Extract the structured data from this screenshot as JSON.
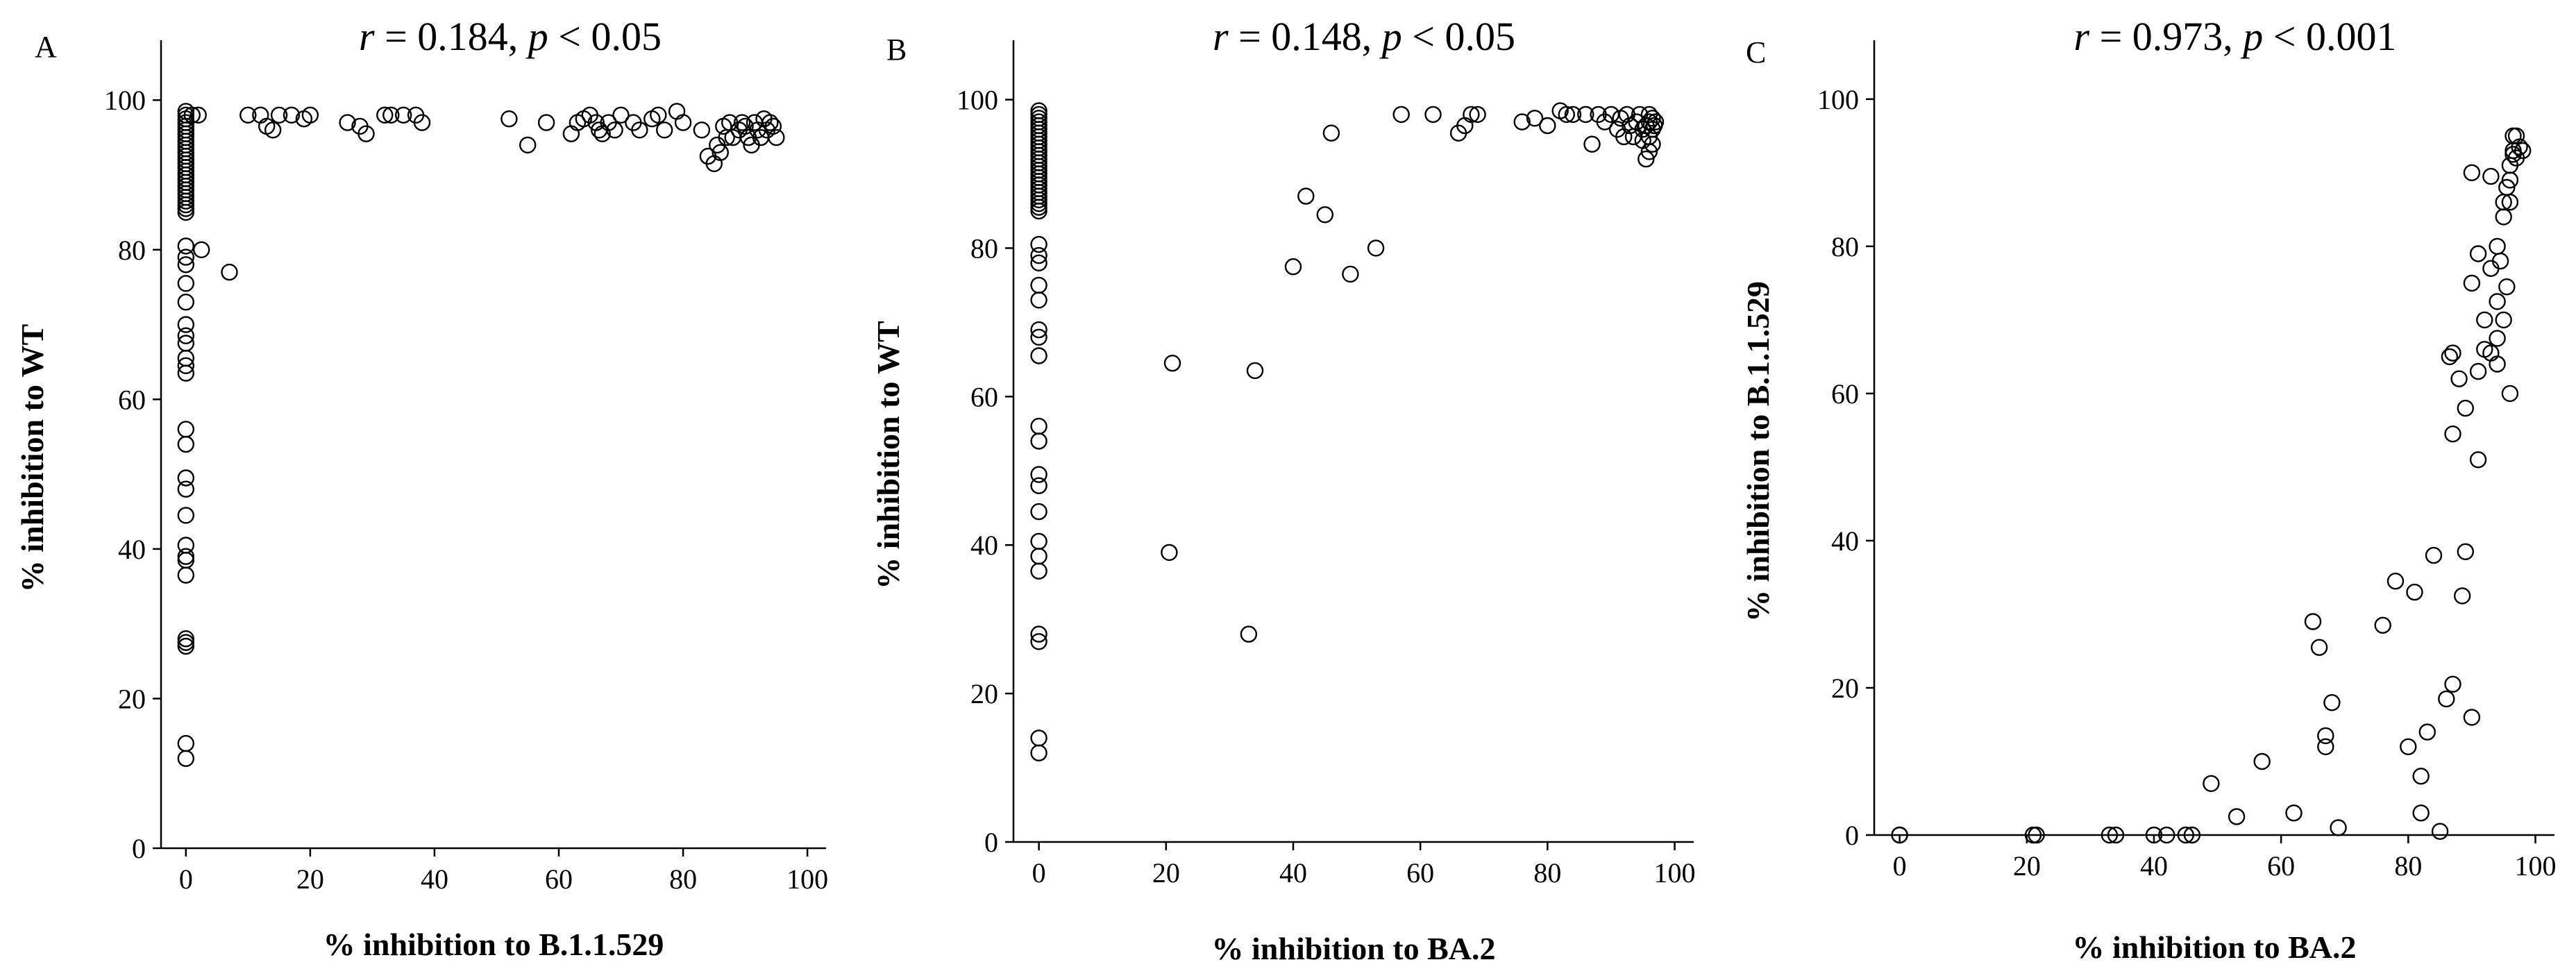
{
  "chart_data": [
    {
      "type": "scatter",
      "panel_label": "A",
      "title_r_sym": "r",
      "title_r_val": " = 0.184, ",
      "title_p_sym": "p",
      "title_p_val": " < 0.05",
      "xlabel": "% inhibition to B.1.1.529",
      "ylabel": "% inhibition to WT",
      "xlim": [
        -4,
        103
      ],
      "ylim": [
        0,
        108
      ],
      "xticks": [
        0,
        20,
        40,
        60,
        80,
        100
      ],
      "yticks": [
        0,
        20,
        40,
        60,
        80,
        100
      ],
      "points": [
        [
          0,
          98.5
        ],
        [
          0,
          98
        ],
        [
          0,
          97.5
        ],
        [
          0,
          97
        ],
        [
          0,
          96.5
        ],
        [
          0,
          96
        ],
        [
          0,
          95.5
        ],
        [
          0,
          95
        ],
        [
          0,
          94.5
        ],
        [
          0,
          94
        ],
        [
          0,
          93.5
        ],
        [
          0,
          93
        ],
        [
          0,
          92.5
        ],
        [
          0,
          92
        ],
        [
          0,
          91.5
        ],
        [
          0,
          91
        ],
        [
          0,
          90.5
        ],
        [
          0,
          90
        ],
        [
          0,
          89.5
        ],
        [
          0,
          89
        ],
        [
          0,
          88.5
        ],
        [
          0,
          88
        ],
        [
          0,
          87.5
        ],
        [
          0,
          87
        ],
        [
          0,
          86.5
        ],
        [
          0,
          86
        ],
        [
          0,
          85.5
        ],
        [
          0,
          85
        ],
        [
          0,
          80.5
        ],
        [
          0,
          79
        ],
        [
          0,
          78
        ],
        [
          0,
          75.5
        ],
        [
          0,
          73
        ],
        [
          0,
          70
        ],
        [
          0,
          68.5
        ],
        [
          0,
          67.5
        ],
        [
          0,
          65.5
        ],
        [
          0,
          64.5
        ],
        [
          0,
          63.5
        ],
        [
          0,
          56
        ],
        [
          0,
          54
        ],
        [
          0,
          49.5
        ],
        [
          0,
          48
        ],
        [
          0,
          44.5
        ],
        [
          0,
          40.5
        ],
        [
          0,
          39
        ],
        [
          0,
          38.5
        ],
        [
          0,
          36.5
        ],
        [
          0,
          28
        ],
        [
          0,
          27.5
        ],
        [
          0,
          27
        ],
        [
          0,
          14
        ],
        [
          0,
          12
        ],
        [
          1,
          98
        ],
        [
          2,
          98
        ],
        [
          2.5,
          80
        ],
        [
          7,
          77
        ],
        [
          10,
          98
        ],
        [
          12,
          98
        ],
        [
          13,
          96.5
        ],
        [
          14,
          96
        ],
        [
          15,
          98
        ],
        [
          17,
          98
        ],
        [
          19,
          97.5
        ],
        [
          20,
          98
        ],
        [
          26,
          97
        ],
        [
          28,
          96.5
        ],
        [
          29,
          95.5
        ],
        [
          32,
          98
        ],
        [
          33,
          98
        ],
        [
          35,
          98
        ],
        [
          37,
          98
        ],
        [
          38,
          97
        ],
        [
          52,
          97.5
        ],
        [
          55,
          94
        ],
        [
          58,
          97
        ],
        [
          62,
          95.5
        ],
        [
          63,
          97
        ],
        [
          64,
          97.5
        ],
        [
          65,
          98
        ],
        [
          66,
          97
        ],
        [
          66.5,
          96
        ],
        [
          67,
          95.5
        ],
        [
          68,
          97
        ],
        [
          69,
          96
        ],
        [
          70,
          98
        ],
        [
          72,
          97
        ],
        [
          73,
          96
        ],
        [
          75,
          97.5
        ],
        [
          76,
          98
        ],
        [
          77,
          96
        ],
        [
          79,
          98.5
        ],
        [
          80,
          97
        ],
        [
          83,
          96
        ],
        [
          84,
          92.5
        ],
        [
          85,
          91.5
        ],
        [
          85.5,
          94
        ],
        [
          86,
          93
        ],
        [
          86.5,
          96.5
        ],
        [
          87,
          95
        ],
        [
          87.5,
          97
        ],
        [
          88,
          95
        ],
        [
          89,
          96
        ],
        [
          89.5,
          97
        ],
        [
          90,
          96.5
        ],
        [
          90.5,
          95
        ],
        [
          91,
          94
        ],
        [
          91.5,
          97
        ],
        [
          92,
          96
        ],
        [
          92.5,
          95
        ],
        [
          93,
          97.5
        ],
        [
          93.5,
          96
        ],
        [
          94,
          97
        ],
        [
          94.5,
          96.5
        ],
        [
          95,
          95
        ]
      ]
    },
    {
      "type": "scatter",
      "panel_label": "B",
      "title_r_sym": "r",
      "title_r_val": " = 0.148, ",
      "title_p_sym": "p",
      "title_p_val": " < 0.05",
      "xlabel": "% inhibition to BA.2",
      "ylabel": "% inhibition to WT",
      "xlim": [
        -4,
        103
      ],
      "ylim": [
        0,
        108
      ],
      "xticks": [
        0,
        20,
        40,
        60,
        80,
        100
      ],
      "yticks": [
        0,
        20,
        40,
        60,
        80,
        100
      ],
      "points": [
        [
          0,
          98.5
        ],
        [
          0,
          98
        ],
        [
          0,
          97.5
        ],
        [
          0,
          97
        ],
        [
          0,
          96.5
        ],
        [
          0,
          96
        ],
        [
          0,
          95.5
        ],
        [
          0,
          95
        ],
        [
          0,
          94.5
        ],
        [
          0,
          94
        ],
        [
          0,
          93.5
        ],
        [
          0,
          93
        ],
        [
          0,
          92.5
        ],
        [
          0,
          92
        ],
        [
          0,
          91.5
        ],
        [
          0,
          91
        ],
        [
          0,
          90.5
        ],
        [
          0,
          90
        ],
        [
          0,
          89.5
        ],
        [
          0,
          89
        ],
        [
          0,
          88.5
        ],
        [
          0,
          88
        ],
        [
          0,
          87.5
        ],
        [
          0,
          87
        ],
        [
          0,
          86.5
        ],
        [
          0,
          86
        ],
        [
          0,
          85.5
        ],
        [
          0,
          85
        ],
        [
          0,
          80.5
        ],
        [
          0,
          79
        ],
        [
          0,
          78
        ],
        [
          0,
          75
        ],
        [
          0,
          73
        ],
        [
          0,
          69
        ],
        [
          0,
          68
        ],
        [
          0,
          65.5
        ],
        [
          0,
          56
        ],
        [
          0,
          54
        ],
        [
          0,
          49.5
        ],
        [
          0,
          48
        ],
        [
          0,
          44.5
        ],
        [
          0,
          40.5
        ],
        [
          0,
          38.5
        ],
        [
          0,
          36.5
        ],
        [
          0,
          28
        ],
        [
          0,
          27
        ],
        [
          0,
          14
        ],
        [
          0,
          12
        ],
        [
          20.5,
          39
        ],
        [
          21,
          64.5
        ],
        [
          33,
          28
        ],
        [
          34,
          63.5
        ],
        [
          40,
          77.5
        ],
        [
          42,
          87
        ],
        [
          45,
          84.5
        ],
        [
          46,
          95.5
        ],
        [
          49,
          76.5
        ],
        [
          53,
          80
        ],
        [
          57,
          98
        ],
        [
          62,
          98
        ],
        [
          66,
          95.5
        ],
        [
          67,
          96.5
        ],
        [
          68,
          98
        ],
        [
          69,
          98
        ],
        [
          76,
          97
        ],
        [
          78,
          97.5
        ],
        [
          80,
          96.5
        ],
        [
          82,
          98.5
        ],
        [
          83,
          98
        ],
        [
          84,
          98
        ],
        [
          86,
          98
        ],
        [
          87,
          94
        ],
        [
          88,
          98
        ],
        [
          89,
          97
        ],
        [
          90,
          98
        ],
        [
          91,
          96
        ],
        [
          91.5,
          97.5
        ],
        [
          92,
          95
        ],
        [
          92.5,
          98
        ],
        [
          93,
          96.5
        ],
        [
          93.5,
          95
        ],
        [
          94,
          97
        ],
        [
          94.5,
          98
        ],
        [
          95,
          96
        ],
        [
          95,
          94.5
        ],
        [
          95.5,
          92
        ],
        [
          95.5,
          96.5
        ],
        [
          96,
          97
        ],
        [
          96,
          95
        ],
        [
          96,
          93
        ],
        [
          96,
          98
        ],
        [
          96.5,
          96
        ],
        [
          96.5,
          97.5
        ],
        [
          96.5,
          94
        ],
        [
          96.8,
          96.5
        ],
        [
          97,
          97
        ]
      ]
    },
    {
      "type": "scatter",
      "panel_label": "C",
      "title_r_sym": "r",
      "title_r_val": " = 0.973, ",
      "title_p_sym": "p",
      "title_p_val": " < 0.001",
      "xlabel": "% inhibition to BA.2",
      "ylabel": "% inhibition to B.1.1.529",
      "xlim": [
        -4,
        103
      ],
      "ylim": [
        0,
        108
      ],
      "xticks": [
        0,
        20,
        40,
        60,
        80,
        100
      ],
      "yticks": [
        0,
        20,
        40,
        60,
        80,
        100
      ],
      "points": [
        [
          0,
          0
        ],
        [
          0,
          0
        ],
        [
          21,
          0
        ],
        [
          21.5,
          0
        ],
        [
          33,
          0
        ],
        [
          34,
          0
        ],
        [
          40,
          0
        ],
        [
          42,
          0
        ],
        [
          45,
          0
        ],
        [
          46,
          0
        ],
        [
          49,
          7
        ],
        [
          53,
          2.5
        ],
        [
          57,
          10
        ],
        [
          62,
          3
        ],
        [
          65,
          29
        ],
        [
          66,
          25.5
        ],
        [
          67,
          13.5
        ],
        [
          67,
          12
        ],
        [
          68,
          18
        ],
        [
          69,
          1
        ],
        [
          76,
          28.5
        ],
        [
          78,
          34.5
        ],
        [
          80,
          12
        ],
        [
          81,
          33
        ],
        [
          82,
          3
        ],
        [
          82,
          8
        ],
        [
          83,
          14
        ],
        [
          84,
          38
        ],
        [
          85,
          0.5
        ],
        [
          86,
          18.5
        ],
        [
          87,
          20.5
        ],
        [
          86.5,
          65
        ],
        [
          87,
          65.5
        ],
        [
          87,
          54.5
        ],
        [
          88,
          62
        ],
        [
          88.5,
          32.5
        ],
        [
          89,
          38.5
        ],
        [
          89,
          58
        ],
        [
          90,
          16
        ],
        [
          90,
          75
        ],
        [
          90,
          90
        ],
        [
          91,
          51
        ],
        [
          91,
          63
        ],
        [
          91,
          79
        ],
        [
          92,
          70
        ],
        [
          92,
          66
        ],
        [
          93,
          77
        ],
        [
          93,
          65.5
        ],
        [
          93,
          89.5
        ],
        [
          94,
          80
        ],
        [
          94,
          72.5
        ],
        [
          94,
          64
        ],
        [
          94,
          67.5
        ],
        [
          94.5,
          78
        ],
        [
          95,
          86
        ],
        [
          95,
          70
        ],
        [
          95,
          84
        ],
        [
          95.5,
          88
        ],
        [
          95.5,
          74.5
        ],
        [
          96,
          91
        ],
        [
          96,
          86
        ],
        [
          96,
          89
        ],
        [
          96,
          60
        ],
        [
          96.5,
          93
        ],
        [
          96.5,
          95
        ],
        [
          96.5,
          92.5
        ],
        [
          97,
          95
        ],
        [
          97,
          92
        ],
        [
          97.5,
          93.5
        ],
        [
          98,
          93
        ]
      ]
    }
  ]
}
